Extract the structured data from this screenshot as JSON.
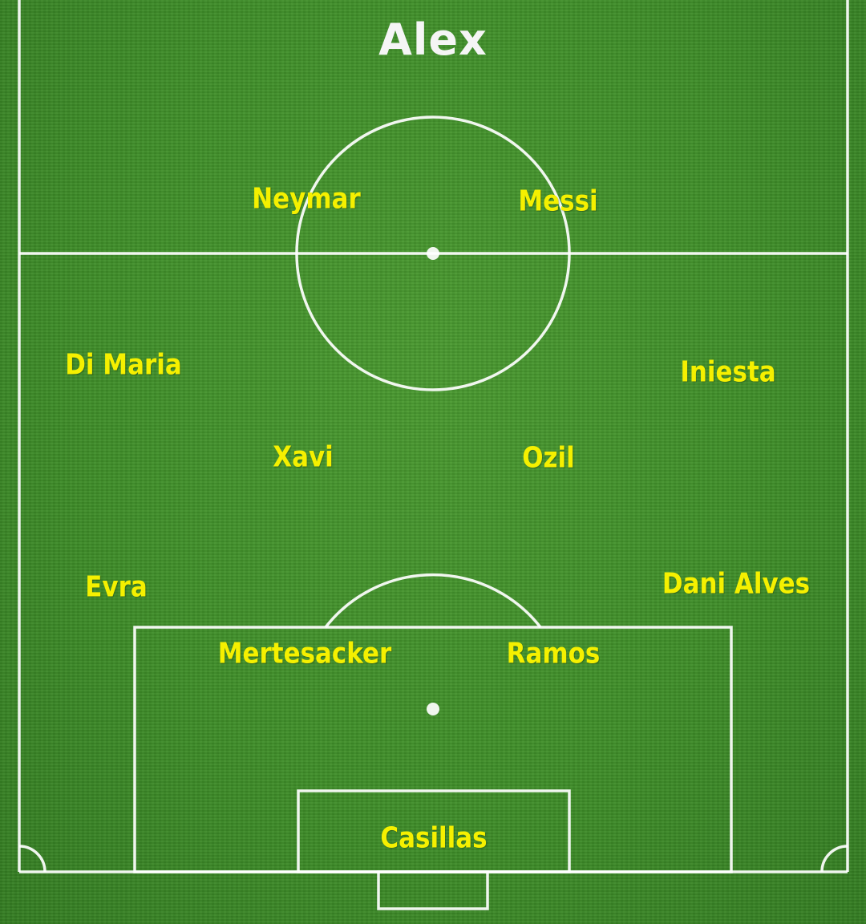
{
  "title": "Alex",
  "colors": {
    "grass": "#3f8f29",
    "lines": "#ffffff",
    "title": "#f5f5f5",
    "player_names": "#f5f000"
  },
  "players": {
    "neymar": "Neymar",
    "messi": "Messi",
    "di_maria": "Di Maria",
    "iniesta": "Iniesta",
    "xavi": "Xavi",
    "ozil": "Ozil",
    "evra": "Evra",
    "dani_alves": "Dani Alves",
    "mertesacker": "Mertesacker",
    "ramos": "Ramos",
    "casillas": "Casillas"
  }
}
